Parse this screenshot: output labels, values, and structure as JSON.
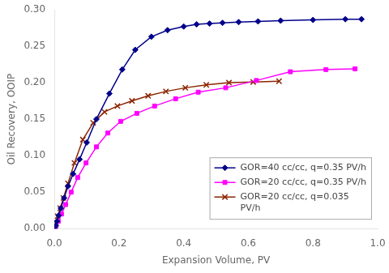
{
  "chart_data": {
    "type": "line",
    "xlabel": "Expansion Volume, PV",
    "ylabel": "Oil Recovery, OOIP",
    "xlim": [
      0,
      1.0
    ],
    "ylim": [
      0,
      0.3
    ],
    "xticks": [
      {
        "value": 0,
        "label": "0.0"
      },
      {
        "value": 0.2,
        "label": "0.2"
      },
      {
        "value": 0.4,
        "label": "0.4"
      },
      {
        "value": 0.6,
        "label": "0.6"
      },
      {
        "value": 0.8,
        "label": "0.8"
      },
      {
        "value": 1.0,
        "label": "1.0"
      }
    ],
    "yticks": [
      {
        "value": 0,
        "label": "0.00"
      },
      {
        "value": 0.05,
        "label": "0.05"
      },
      {
        "value": 0.1,
        "label": "0.10"
      },
      {
        "value": 0.15,
        "label": "0.15"
      },
      {
        "value": 0.2,
        "label": "0.20"
      },
      {
        "value": 0.25,
        "label": "0.25"
      },
      {
        "value": 0.3,
        "label": "0.30"
      }
    ],
    "grid": false,
    "legend": "lower right",
    "series": [
      {
        "name": "GOR=40 cc/cc, q=0.35 PV/h",
        "color": "#00008B",
        "marker": "diamond",
        "x": [
          0.0,
          0.004,
          0.008,
          0.013,
          0.02,
          0.03,
          0.042,
          0.058,
          0.078,
          0.1,
          0.13,
          0.17,
          0.21,
          0.25,
          0.3,
          0.35,
          0.4,
          0.44,
          0.48,
          0.52,
          0.57,
          0.63,
          0.7,
          0.8,
          0.9,
          0.95
        ],
        "values": [
          0.0,
          0.004,
          0.01,
          0.018,
          0.028,
          0.042,
          0.058,
          0.075,
          0.095,
          0.118,
          0.15,
          0.185,
          0.218,
          0.245,
          0.263,
          0.272,
          0.277,
          0.28,
          0.281,
          0.282,
          0.283,
          0.284,
          0.285,
          0.286,
          0.287,
          0.287
        ]
      },
      {
        "name": "GOR=20 cc/cc, q=0.35 PV/h",
        "color": "#FF00FF",
        "marker": "square",
        "x": [
          0.0,
          0.005,
          0.012,
          0.022,
          0.035,
          0.052,
          0.072,
          0.098,
          0.13,
          0.165,
          0.205,
          0.255,
          0.31,
          0.375,
          0.445,
          0.53,
          0.625,
          0.73,
          0.84,
          0.93
        ],
        "values": [
          0.0,
          0.003,
          0.01,
          0.02,
          0.033,
          0.05,
          0.07,
          0.09,
          0.112,
          0.131,
          0.147,
          0.158,
          0.168,
          0.178,
          0.187,
          0.193,
          0.203,
          0.215,
          0.218,
          0.219
        ]
      },
      {
        "name": "GOR=20 cc/cc, q=0.035\nPV/h",
        "color": "#8B2500",
        "marker": "x",
        "x": [
          0.0,
          0.005,
          0.01,
          0.018,
          0.028,
          0.042,
          0.062,
          0.088,
          0.12,
          0.155,
          0.195,
          0.24,
          0.29,
          0.345,
          0.405,
          0.47,
          0.54,
          0.615,
          0.695
        ],
        "values": [
          0.0,
          0.008,
          0.017,
          0.028,
          0.042,
          0.062,
          0.09,
          0.122,
          0.145,
          0.16,
          0.168,
          0.175,
          0.182,
          0.188,
          0.193,
          0.197,
          0.2,
          0.201,
          0.202
        ]
      }
    ]
  }
}
